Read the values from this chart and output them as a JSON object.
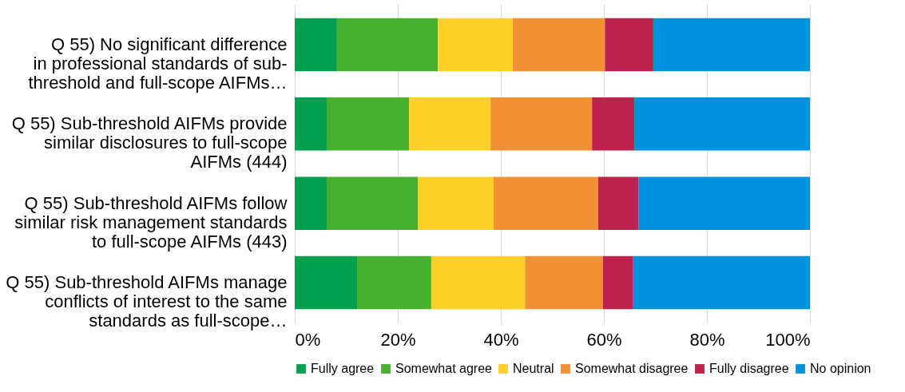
{
  "chart_data": {
    "type": "bar",
    "orientation": "horizontal",
    "stacked": true,
    "categories": [
      "Q 55) No significant difference in professional standards of sub-threshold and full-scope AIFMs…",
      "Q 55) Sub-threshold AIFMs provide similar disclosures to full-scope AIFMs (444)",
      "Q 55) Sub-threshold AIFMs follow similar risk management standards to full-scope AIFMs (443)",
      "Q 55) Sub-threshold AIFMs manage conflicts of interest to the same standards as full-scope…"
    ],
    "series": [
      {
        "name": "Fully agree",
        "color": "#00a04e",
        "values": [
          8.2,
          6.2,
          6.2,
          12.1
        ]
      },
      {
        "name": "Somewhat agree",
        "color": "#47b12d",
        "values": [
          19.6,
          16.0,
          17.7,
          14.4
        ]
      },
      {
        "name": "Neutral",
        "color": "#fecf26",
        "values": [
          14.5,
          15.8,
          14.7,
          18.2
        ]
      },
      {
        "name": "Somewhat disagree",
        "color": "#f38f34",
        "values": [
          17.9,
          19.7,
          20.3,
          15.1
        ]
      },
      {
        "name": "Fully disagree",
        "color": "#be214b",
        "values": [
          9.4,
          8.2,
          7.8,
          5.9
        ]
      },
      {
        "name": "No opinion",
        "color": "#0192de",
        "values": [
          30.4,
          34.1,
          33.3,
          34.3
        ]
      }
    ],
    "xlim": [
      0,
      100
    ],
    "xticks": [
      {
        "value": 0,
        "label": "0%"
      },
      {
        "value": 20,
        "label": "20%"
      },
      {
        "value": 40,
        "label": "40%"
      },
      {
        "value": 60,
        "label": "60%"
      },
      {
        "value": 80,
        "label": "80%"
      },
      {
        "value": 100,
        "label": "100%"
      }
    ],
    "grid": "x",
    "legend": "bottom"
  }
}
